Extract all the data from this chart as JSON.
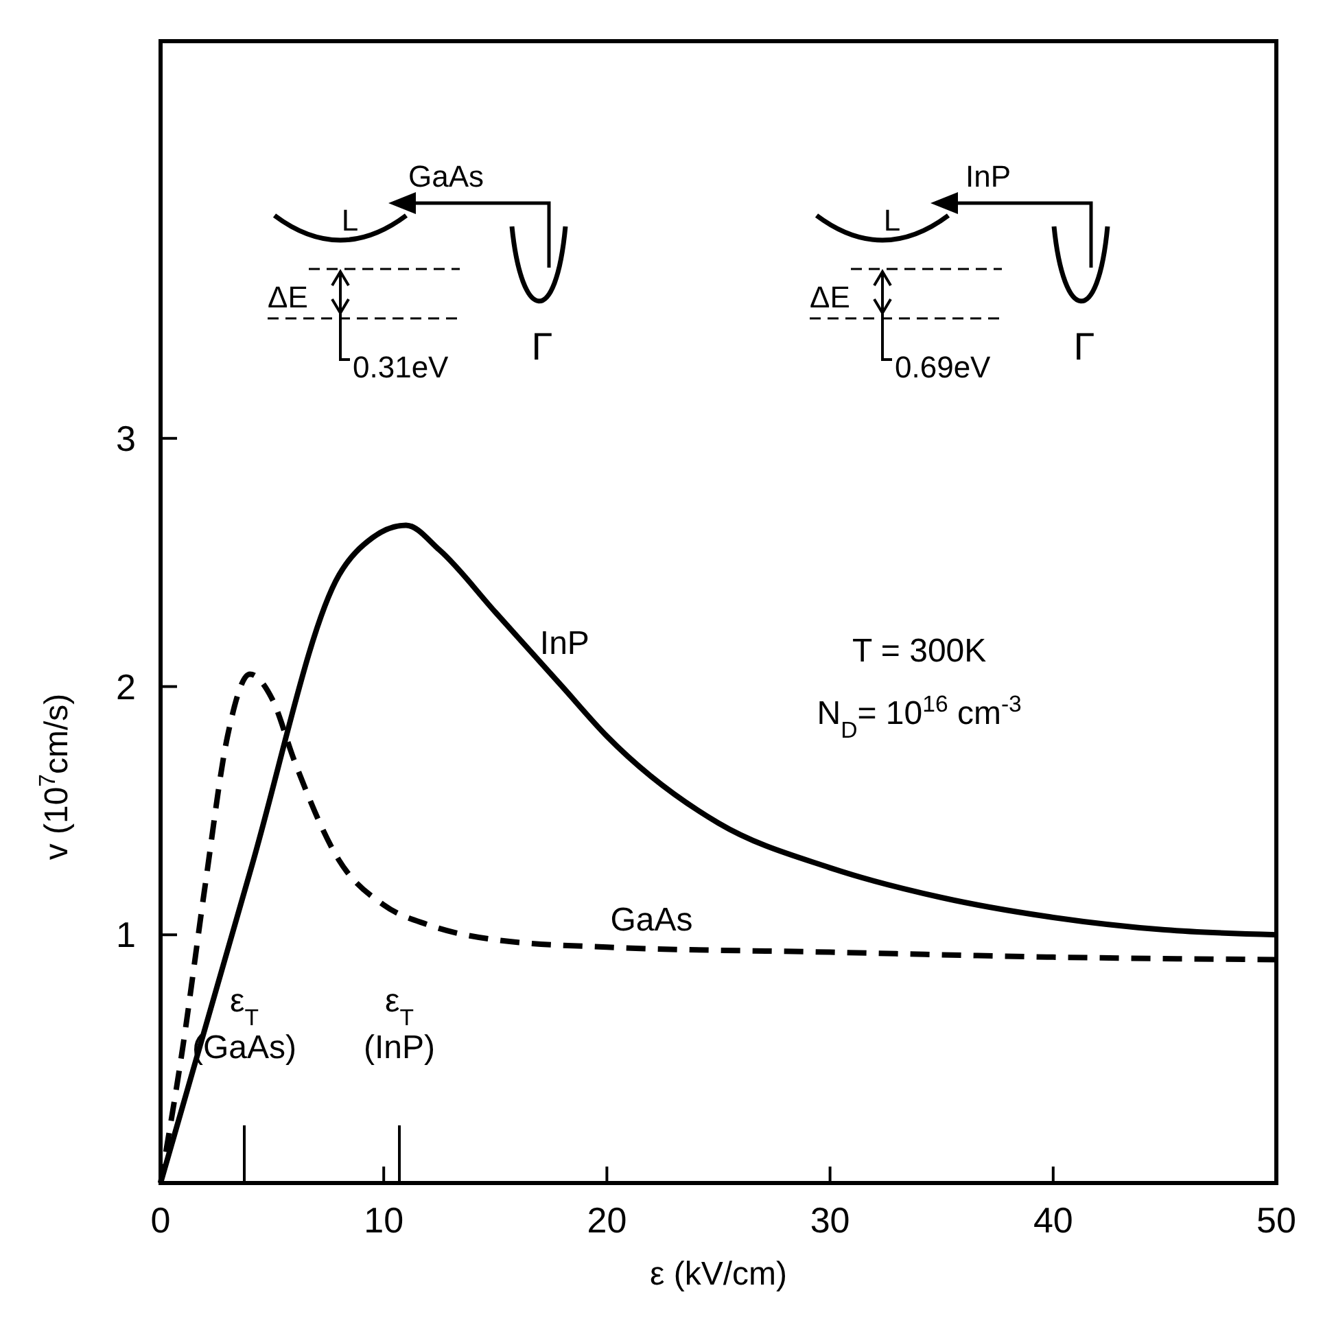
{
  "chart_data": {
    "type": "line",
    "xlabel": "ε (kV/cm)",
    "ylabel": "v (10$^{7}$cm/s)",
    "xlim": [
      0,
      50
    ],
    "ylim": [
      0,
      4.6
    ],
    "xticks": [
      0,
      10,
      20,
      30,
      40,
      50
    ],
    "yticks": [
      1,
      2,
      3
    ],
    "series": [
      {
        "name": "InP",
        "color": "#000000",
        "line_style": "solid",
        "x": [
          0,
          4,
          8,
          9.5,
          11,
          12.5,
          15,
          18,
          20,
          25,
          30,
          35,
          40,
          45,
          50
        ],
        "values": [
          0,
          1.25,
          2.45,
          2.6,
          2.65,
          2.55,
          2.3,
          2.0,
          1.8,
          1.45,
          1.27,
          1.15,
          1.07,
          1.02,
          1.0
        ]
      },
      {
        "name": "GaAs",
        "color": "#000000",
        "line_style": "dashed",
        "x": [
          0,
          1,
          2,
          3,
          4,
          5,
          6,
          8,
          10,
          12,
          15,
          20,
          30,
          40,
          50
        ],
        "values": [
          0,
          0.55,
          1.2,
          1.8,
          2.05,
          1.95,
          1.7,
          1.3,
          1.12,
          1.04,
          0.98,
          0.95,
          0.93,
          0.91,
          0.9
        ]
      }
    ],
    "annotations": [
      "GaAs",
      "L",
      "ΔE",
      "0.31eV",
      "Γ",
      "InP",
      "L",
      "ΔE",
      "0.69eV",
      "Γ",
      "T = 300K",
      "N$_{D}$= 10$^{16}$ cm$^{-3}$",
      "ε$_{T}$ (GaAs)",
      "ε$_{T}$ (InP)"
    ]
  }
}
